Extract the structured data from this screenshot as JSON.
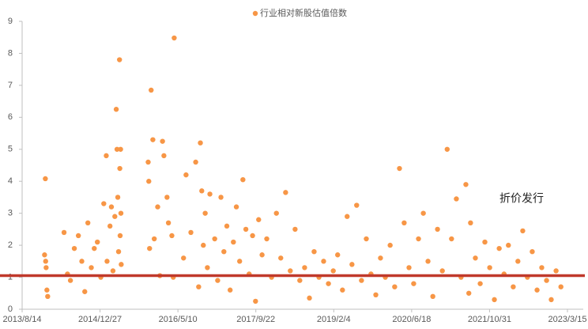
{
  "chart_data": {
    "type": "scatter",
    "series": [
      {
        "name": "行业相对新股估值倍数",
        "color": "#f79646",
        "x": [
          "2014/1/10",
          "2014/1/5",
          "2014/1/15",
          "2014/1/20",
          "2014/1/25",
          "2014/1/12",
          "2014/5/10",
          "2014/6/1",
          "2014/6/20",
          "2014/7/15",
          "2014/8/10",
          "2014/9/1",
          "2014/9/20",
          "2014/10/10",
          "2014/11/1",
          "2014/11/20",
          "2014/12/10",
          "2015/1/1",
          "2015/1/20",
          "2015/2/5",
          "2015/2/10",
          "2015/3/1",
          "2015/3/10",
          "2015/3/20",
          "2015/4/1",
          "2015/4/10",
          "2015/4/15",
          "2015/4/20",
          "2015/4/25",
          "2015/5/1",
          "2015/5/3",
          "2015/5/5",
          "2015/5/8",
          "2015/5/10",
          "2015/5/12",
          "2015/11/1",
          "2015/11/5",
          "2015/11/10",
          "2015/11/20",
          "2015/12/1",
          "2015/12/10",
          "2016/1/1",
          "2016/1/15",
          "2016/2/1",
          "2016/2/10",
          "2016/3/1",
          "2016/3/10",
          "2016/4/1",
          "2016/4/10",
          "2016/4/16",
          "2016/6/15",
          "2016/7/1",
          "2016/8/1",
          "2016/9/1",
          "2016/9/20",
          "2016/10/1",
          "2016/10/10",
          "2016/10/20",
          "2016/11/1",
          "2016/11/15",
          "2016/12/1",
          "2017/1/1",
          "2017/1/20",
          "2017/2/10",
          "2017/3/1",
          "2017/3/20",
          "2017/4/10",
          "2017/5/1",
          "2017/5/20",
          "2017/6/10",
          "2017/7/1",
          "2017/7/20",
          "2017/8/10",
          "2017/9/1",
          "2017/9/20",
          "2017/10/10",
          "2017/11/1",
          "2017/12/1",
          "2018/1/1",
          "2018/2/1",
          "2018/3/1",
          "2018/4/1",
          "2018/5/1",
          "2018/6/1",
          "2018/7/1",
          "2018/8/1",
          "2018/9/1",
          "2018/10/1",
          "2018/11/1",
          "2018/12/1",
          "2019/1/1",
          "2019/2/1",
          "2019/3/1",
          "2019/4/1",
          "2019/5/1",
          "2019/6/1",
          "2019/7/1",
          "2019/8/1",
          "2019/9/1",
          "2019/10/1",
          "2019/11/1",
          "2019/12/1",
          "2020/1/1",
          "2020/2/1",
          "2020/3/1",
          "2020/4/1",
          "2020/5/1",
          "2020/6/1",
          "2020/7/1",
          "2020/8/1",
          "2020/9/1",
          "2020/10/1",
          "2020/11/1",
          "2020/12/1",
          "2021/1/1",
          "2021/2/1",
          "2021/3/1",
          "2021/4/1",
          "2021/5/1",
          "2021/6/1",
          "2021/6/20",
          "2021/7/1",
          "2021/8/1",
          "2021/9/1",
          "2021/10/1",
          "2021/11/1",
          "2021/12/1",
          "2022/1/1",
          "2022/2/1",
          "2022/3/1",
          "2022/4/1",
          "2022/5/1",
          "2022/6/1",
          "2022/7/1",
          "2022/8/1",
          "2022/9/1",
          "2022/10/1",
          "2022/11/1",
          "2022/12/1",
          "2023/1/1",
          "2023/2/1"
        ],
        "values": [
          4.08,
          1.7,
          1.3,
          0.6,
          0.4,
          1.5,
          2.4,
          1.1,
          0.9,
          1.9,
          2.3,
          1.5,
          0.55,
          2.7,
          1.3,
          1.9,
          2.1,
          1.0,
          3.3,
          4.8,
          1.5,
          2.6,
          3.2,
          1.2,
          2.9,
          6.25,
          5.0,
          3.5,
          1.8,
          7.8,
          4.4,
          2.3,
          5.0,
          3.0,
          1.4,
          4.6,
          4.0,
          1.9,
          6.85,
          5.3,
          2.2,
          3.2,
          1.05,
          5.25,
          4.8,
          3.5,
          2.7,
          2.3,
          1.0,
          8.48,
          1.6,
          4.2,
          2.4,
          4.6,
          0.7,
          5.2,
          3.7,
          2.0,
          3.0,
          1.3,
          3.6,
          2.2,
          0.9,
          3.5,
          1.8,
          2.6,
          0.6,
          2.1,
          3.2,
          1.5,
          4.05,
          2.5,
          1.1,
          2.3,
          0.25,
          2.8,
          1.7,
          2.2,
          1.0,
          3.0,
          1.6,
          3.65,
          1.2,
          2.5,
          0.9,
          1.3,
          0.35,
          1.8,
          1.0,
          1.5,
          0.8,
          1.2,
          1.7,
          0.6,
          2.9,
          1.4,
          3.25,
          0.9,
          2.2,
          1.1,
          0.45,
          1.6,
          1.0,
          2.0,
          0.7,
          4.4,
          2.7,
          1.3,
          0.8,
          2.2,
          3.0,
          1.5,
          0.4,
          2.5,
          1.2,
          5.0,
          2.2,
          3.45,
          1.0,
          3.9,
          0.5,
          2.7,
          1.6,
          0.8,
          2.1,
          1.3,
          0.3,
          1.9,
          1.1,
          2.0,
          0.7,
          1.5,
          2.45,
          1.0,
          1.8,
          0.6,
          1.3,
          0.9,
          0.3,
          1.2,
          0.7
        ]
      }
    ],
    "xlim": [
      "2013/8/14",
      "2023/3/15"
    ],
    "xticks": [
      "2013/8/14",
      "2014/12/27",
      "2016/5/10",
      "2017/9/22",
      "2019/2/4",
      "2020/6/18",
      "2021/10/31",
      "2023/3/15"
    ],
    "ylim": [
      0,
      9
    ],
    "yticks": [
      0,
      1,
      2,
      3,
      4,
      5,
      6,
      7,
      8,
      9
    ],
    "reference_line": {
      "value": 1.05,
      "color": "#c0392b"
    },
    "annotation": "折价发行",
    "legend": "top"
  }
}
